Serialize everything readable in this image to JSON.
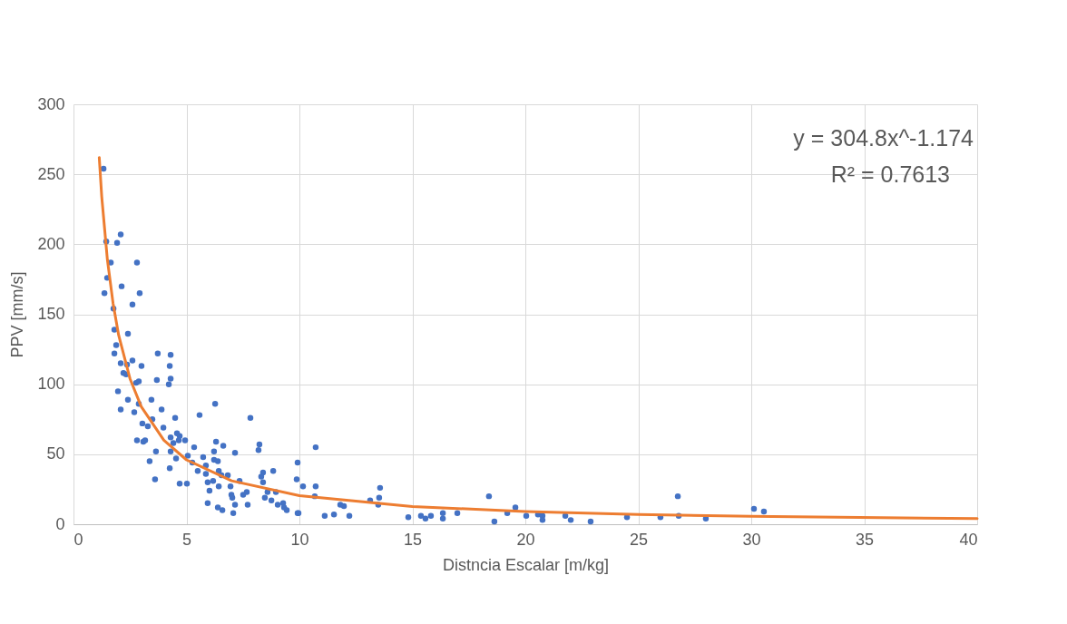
{
  "chart_data": {
    "type": "scatter",
    "xlabel": "Distncia Escalar [m/kg]",
    "ylabel": "PPV [mm/s]",
    "xlim": [
      0,
      40
    ],
    "xticks": [
      0,
      5,
      10,
      15,
      20,
      25,
      30,
      35,
      40
    ],
    "ylim": [
      0,
      300
    ],
    "yticks": [
      0,
      50,
      100,
      150,
      200,
      250,
      300
    ],
    "grid": true,
    "annotations": [
      "y = 304.8x^-1.174",
      "R² = 0.7613"
    ],
    "series": [
      {
        "color": "#4472c4",
        "marker": "circle",
        "x": [
          1.33,
          2.09,
          1.45,
          1.93,
          1.65,
          2.81,
          1.49,
          2.13,
          2.93,
          1.37,
          2.61,
          1.77,
          1.81,
          2.41,
          1.89,
          1.81,
          3.73,
          4.3,
          2.61,
          2.09,
          2.37,
          3.01,
          4.26,
          2.21,
          2.33,
          2.77,
          2.89,
          3.69,
          4.3,
          4.22,
          1.97,
          2.41,
          3.45,
          2.09,
          2.69,
          3.9,
          2.89,
          3.05,
          3.49,
          4.5,
          5.58,
          6.27,
          3.29,
          3.98,
          2.81,
          3.09,
          3.17,
          4.3,
          4.58,
          4.7,
          4.66,
          4.94,
          4.42,
          3.65,
          4.3,
          3.37,
          4.54,
          5.06,
          4.26,
          3.61,
          4.7,
          5.02,
          5.34,
          6.31,
          6.63,
          6.22,
          7.15,
          7.83,
          8.23,
          8.19,
          5.74,
          6.22,
          6.39,
          5.26,
          5.86,
          5.5,
          6.43,
          5.86,
          6.55,
          6.83,
          5.94,
          6.18,
          6.43,
          6.95,
          6.02,
          7.35,
          8.39,
          8.31,
          8.84,
          8.39,
          7.67,
          6.99,
          7.03,
          7.51,
          8.59,
          8.96,
          8.47,
          8.76,
          5.94,
          6.39,
          6.59,
          7.15,
          7.07,
          7.71,
          9.04,
          9.28,
          9.32,
          9.44,
          9.92,
          9.88,
          10.16,
          10.72,
          10.72,
          10.68,
          9.92,
          9.96,
          11.12,
          11.53,
          11.81,
          11.97,
          12.21,
          13.13,
          13.53,
          13.57,
          13.49,
          14.82,
          15.38,
          15.58,
          15.82,
          16.35,
          16.35,
          16.99,
          18.39,
          18.63,
          19.2,
          19.56,
          20.04,
          20.56,
          20.76,
          20.76,
          21.77,
          22.01,
          22.89,
          24.5,
          25.98,
          26.75,
          26.79,
          27.99,
          30.12,
          30.56
        ],
        "values": [
          254,
          207,
          202,
          201,
          187,
          187,
          176,
          170,
          165,
          165,
          157,
          154,
          139,
          136,
          128,
          122,
          122,
          121,
          117,
          115,
          114,
          113,
          113,
          108,
          107,
          101,
          102,
          103,
          104,
          100,
          95,
          89,
          89,
          82,
          80,
          82,
          86,
          72,
          75,
          76,
          78,
          86,
          70,
          69,
          60,
          59,
          60,
          62,
          65,
          63,
          60,
          60,
          58,
          52,
          52,
          45,
          47,
          49,
          40,
          32,
          29,
          29,
          55,
          59,
          56,
          52,
          51,
          76,
          57,
          53,
          48,
          46,
          45,
          44,
          42,
          38,
          38,
          36,
          35,
          35,
          30,
          31,
          27,
          27,
          24,
          31,
          37,
          34,
          38,
          30,
          23,
          21,
          19,
          21,
          23,
          23,
          19,
          17,
          15,
          12,
          10,
          14,
          8,
          14,
          14,
          15,
          12,
          10,
          44,
          32,
          27,
          55,
          27,
          20,
          8,
          8,
          6,
          7,
          14,
          13,
          6,
          17,
          19,
          26,
          14,
          5,
          6,
          4,
          6,
          8,
          4,
          8,
          20,
          2,
          8,
          12,
          6,
          7,
          6,
          3,
          6,
          3,
          2,
          5,
          5,
          20,
          6,
          4,
          11,
          9
        ]
      },
      {
        "type": "line",
        "color": "#ed7d31",
        "x": [
          1.14,
          1.25,
          1.5,
          1.75,
          2,
          2.5,
          3,
          4,
          5,
          7,
          10,
          15,
          20,
          25,
          30,
          40
        ],
        "values": [
          262,
          234,
          189,
          158,
          135,
          104,
          84,
          60,
          46,
          31,
          20.4,
          12.7,
          9.1,
          7.0,
          5.6,
          4.0
        ]
      }
    ]
  }
}
